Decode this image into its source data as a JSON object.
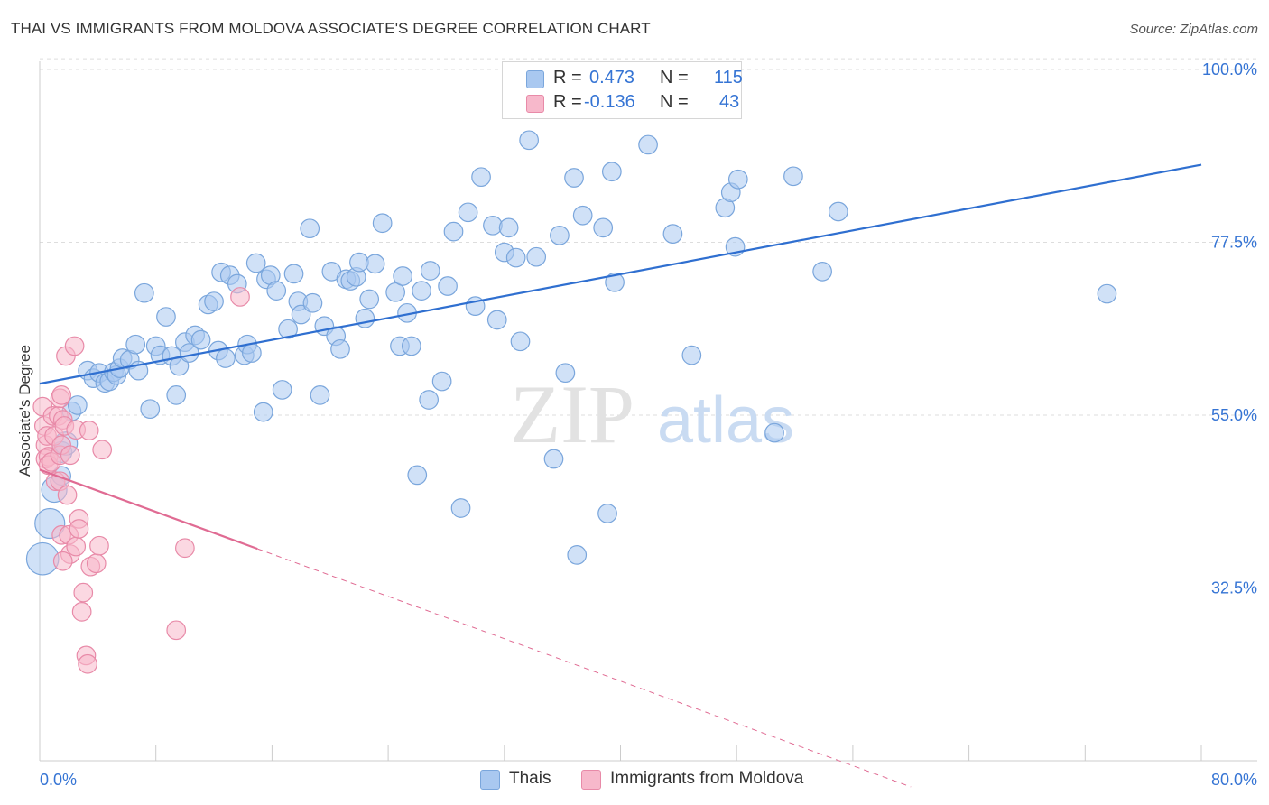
{
  "title": "THAI VS IMMIGRANTS FROM MOLDOVA ASSOCIATE'S DEGREE CORRELATION CHART",
  "source": "Source: ZipAtlas.com",
  "watermark": {
    "zip": "ZIP",
    "atlas": "atlas"
  },
  "legend_top": {
    "rows": [
      {
        "r_label": "R =",
        "r_value": "0.473",
        "n_label": "N =",
        "n_value": "115",
        "color": "#a9c8f0",
        "border": "#7aa6dc"
      },
      {
        "r_label": "R =",
        "r_value": "-0.136",
        "n_label": "N =",
        "n_value": "43",
        "color": "#f7b8cb",
        "border": "#e88aa8"
      }
    ]
  },
  "legend_bottom": [
    {
      "label": "Thais",
      "color": "#a9c8f0",
      "border": "#7aa6dc"
    },
    {
      "label": "Immigrants from Moldova",
      "color": "#f7b8cb",
      "border": "#e88aa8"
    }
  ],
  "colors": {
    "blue_line": "#2f6fd0",
    "pink_line": "#e06b93",
    "axis_text": "#3574d4",
    "grid": "#dddddd"
  },
  "chart_data": {
    "type": "scatter",
    "title": "THAI VS IMMIGRANTS FROM MOLDOVA ASSOCIATE'S DEGREE CORRELATION CHART",
    "xlabel": "",
    "ylabel": "Associate's Degree",
    "xlim": [
      0,
      80
    ],
    "ylim": [
      10,
      102
    ],
    "x_tick_labels": [
      {
        "value": 0,
        "label": "0.0%"
      },
      {
        "value": 80,
        "label": "80.0%"
      }
    ],
    "y_tick_labels": [
      {
        "value": 100,
        "label": "100.0%"
      },
      {
        "value": 77.5,
        "label": "77.5%"
      },
      {
        "value": 55,
        "label": "55.0%"
      },
      {
        "value": 32.5,
        "label": "32.5%"
      }
    ],
    "grid": true,
    "legend_position": "top-center",
    "series": [
      {
        "name": "Thais",
        "color": "#a9c8f0",
        "stroke": "#7aa6dc",
        "trend": {
          "x": [
            0,
            80
          ],
          "y": [
            59.1,
            87.6
          ],
          "dashed_from": null
        },
        "points": [
          [
            0.2,
            36.3,
            26
          ],
          [
            0.7,
            40.9,
            24
          ],
          [
            1.0,
            45.3,
            20
          ],
          [
            1.5,
            47.1,
            14
          ],
          [
            1.5,
            50.2,
            16
          ],
          [
            1.8,
            51.3,
            18
          ],
          [
            2.2,
            55.5,
            14
          ],
          [
            2.6,
            56.3,
            14
          ],
          [
            3.3,
            60.8,
            14
          ],
          [
            3.7,
            59.8,
            14
          ],
          [
            4.1,
            60.5,
            14
          ],
          [
            4.5,
            59.2,
            14
          ],
          [
            4.8,
            59.4,
            14
          ],
          [
            5.1,
            60.6,
            14
          ],
          [
            5.3,
            60.2,
            14
          ],
          [
            5.5,
            61.1,
            14
          ],
          [
            5.7,
            62.4,
            14
          ],
          [
            6.2,
            62.2,
            14
          ],
          [
            6.6,
            64.2,
            14
          ],
          [
            6.8,
            60.8,
            14
          ],
          [
            7.2,
            70.9,
            14
          ],
          [
            7.6,
            55.8,
            14
          ],
          [
            8.0,
            64.0,
            14
          ],
          [
            8.3,
            62.8,
            14
          ],
          [
            8.7,
            67.8,
            14
          ],
          [
            9.1,
            62.7,
            14
          ],
          [
            9.4,
            57.6,
            14
          ],
          [
            9.6,
            61.4,
            14
          ],
          [
            10.0,
            64.5,
            14
          ],
          [
            10.3,
            63.1,
            14
          ],
          [
            10.7,
            65.4,
            14
          ],
          [
            11.1,
            64.8,
            14
          ],
          [
            11.6,
            69.4,
            14
          ],
          [
            12.0,
            69.8,
            14
          ],
          [
            12.3,
            63.4,
            14
          ],
          [
            12.5,
            73.6,
            14
          ],
          [
            12.8,
            62.4,
            14
          ],
          [
            13.1,
            73.2,
            14
          ],
          [
            13.6,
            72.1,
            14
          ],
          [
            14.1,
            62.8,
            14
          ],
          [
            14.3,
            64.2,
            14
          ],
          [
            14.6,
            63.1,
            14
          ],
          [
            14.9,
            74.8,
            14
          ],
          [
            15.4,
            55.4,
            14
          ],
          [
            15.6,
            72.7,
            14
          ],
          [
            15.9,
            73.2,
            14
          ],
          [
            16.3,
            71.2,
            14
          ],
          [
            16.7,
            58.3,
            14
          ],
          [
            17.1,
            66.2,
            14
          ],
          [
            17.5,
            73.4,
            14
          ],
          [
            17.8,
            69.8,
            14
          ],
          [
            18.0,
            68.1,
            14
          ],
          [
            18.6,
            79.3,
            14
          ],
          [
            18.8,
            69.6,
            14
          ],
          [
            19.3,
            57.6,
            14
          ],
          [
            19.6,
            66.6,
            14
          ],
          [
            20.1,
            73.7,
            14
          ],
          [
            20.4,
            65.3,
            14
          ],
          [
            20.7,
            63.6,
            14
          ],
          [
            21.1,
            72.7,
            14
          ],
          [
            21.4,
            72.5,
            14
          ],
          [
            21.8,
            73.0,
            14
          ],
          [
            22.0,
            74.9,
            14
          ],
          [
            22.4,
            67.6,
            14
          ],
          [
            22.7,
            70.1,
            14
          ],
          [
            23.1,
            74.7,
            14
          ],
          [
            23.6,
            80.0,
            14
          ],
          [
            24.5,
            71.0,
            14
          ],
          [
            24.8,
            64.0,
            14
          ],
          [
            25.0,
            73.1,
            14
          ],
          [
            25.3,
            68.3,
            14
          ],
          [
            25.6,
            64.0,
            14
          ],
          [
            26.0,
            47.2,
            14
          ],
          [
            26.3,
            71.2,
            14
          ],
          [
            26.9,
            73.8,
            14
          ],
          [
            26.8,
            57.0,
            14
          ],
          [
            27.7,
            59.4,
            14
          ],
          [
            28.1,
            71.8,
            14
          ],
          [
            28.5,
            78.9,
            14
          ],
          [
            29.0,
            42.9,
            14
          ],
          [
            29.5,
            81.4,
            14
          ],
          [
            30.0,
            69.2,
            14
          ],
          [
            30.4,
            86.0,
            14
          ],
          [
            31.2,
            79.7,
            14
          ],
          [
            31.5,
            67.4,
            14
          ],
          [
            32.0,
            76.2,
            14
          ],
          [
            32.3,
            79.4,
            14
          ],
          [
            32.8,
            75.5,
            14
          ],
          [
            33.1,
            64.6,
            14
          ],
          [
            33.7,
            90.8,
            14
          ],
          [
            34.2,
            75.6,
            14
          ],
          [
            35.4,
            49.3,
            14
          ],
          [
            35.8,
            78.4,
            14
          ],
          [
            36.2,
            60.5,
            14
          ],
          [
            36.8,
            85.9,
            14
          ],
          [
            37.0,
            36.8,
            14
          ],
          [
            37.4,
            81.0,
            14
          ],
          [
            38.8,
            79.4,
            14
          ],
          [
            39.1,
            42.2,
            14
          ],
          [
            39.4,
            86.7,
            14
          ],
          [
            39.6,
            72.3,
            14
          ],
          [
            41.9,
            90.2,
            14
          ],
          [
            43.6,
            78.6,
            14
          ],
          [
            44.9,
            62.8,
            14
          ],
          [
            47.2,
            82.0,
            14
          ],
          [
            47.6,
            84.0,
            14
          ],
          [
            47.9,
            76.9,
            14
          ],
          [
            48.1,
            85.7,
            14
          ],
          [
            50.6,
            52.7,
            14
          ],
          [
            51.9,
            86.1,
            14
          ],
          [
            53.9,
            73.7,
            14
          ],
          [
            55.0,
            81.5,
            14
          ],
          [
            73.5,
            70.8,
            14
          ]
        ]
      },
      {
        "name": "Immigrants from Moldova",
        "color": "#f7b8cb",
        "stroke": "#e88aa8",
        "trend": {
          "x": [
            0,
            15,
            60
          ],
          "y": [
            47.9,
            37.6,
            6.6
          ],
          "dashed_from": 15
        },
        "points": [
          [
            0.2,
            56.1,
            14
          ],
          [
            0.3,
            53.6,
            14
          ],
          [
            0.4,
            51.1,
            14
          ],
          [
            0.4,
            49.3,
            14
          ],
          [
            0.5,
            52.3,
            14
          ],
          [
            0.6,
            49.6,
            14
          ],
          [
            0.6,
            48.5,
            14
          ],
          [
            0.8,
            48.9,
            14
          ],
          [
            0.9,
            54.9,
            14
          ],
          [
            1.0,
            52.3,
            14
          ],
          [
            1.1,
            46.4,
            14
          ],
          [
            1.3,
            54.9,
            14
          ],
          [
            1.4,
            57.2,
            14
          ],
          [
            1.4,
            49.8,
            14
          ],
          [
            1.5,
            51.1,
            14
          ],
          [
            1.5,
            57.6,
            14
          ],
          [
            1.6,
            54.4,
            14
          ],
          [
            1.7,
            53.6,
            14
          ],
          [
            1.4,
            46.4,
            14
          ],
          [
            1.5,
            39.4,
            14
          ],
          [
            1.8,
            62.7,
            14
          ],
          [
            1.9,
            44.6,
            14
          ],
          [
            2.0,
            39.4,
            14
          ],
          [
            2.1,
            49.8,
            14
          ],
          [
            2.1,
            36.9,
            14
          ],
          [
            1.6,
            36.0,
            14
          ],
          [
            2.4,
            64.0,
            14
          ],
          [
            2.5,
            37.9,
            14
          ],
          [
            2.5,
            53.1,
            14
          ],
          [
            2.7,
            41.5,
            14
          ],
          [
            2.7,
            40.2,
            14
          ],
          [
            2.9,
            29.4,
            14
          ],
          [
            3.0,
            31.9,
            14
          ],
          [
            3.2,
            23.7,
            14
          ],
          [
            3.3,
            22.6,
            14
          ],
          [
            3.5,
            35.3,
            14
          ],
          [
            3.4,
            53.0,
            14
          ],
          [
            3.9,
            35.7,
            14
          ],
          [
            4.1,
            38.0,
            14
          ],
          [
            4.3,
            50.5,
            14
          ],
          [
            9.4,
            27.0,
            14
          ],
          [
            10.0,
            37.7,
            14
          ],
          [
            13.8,
            70.4,
            14
          ]
        ]
      }
    ]
  }
}
